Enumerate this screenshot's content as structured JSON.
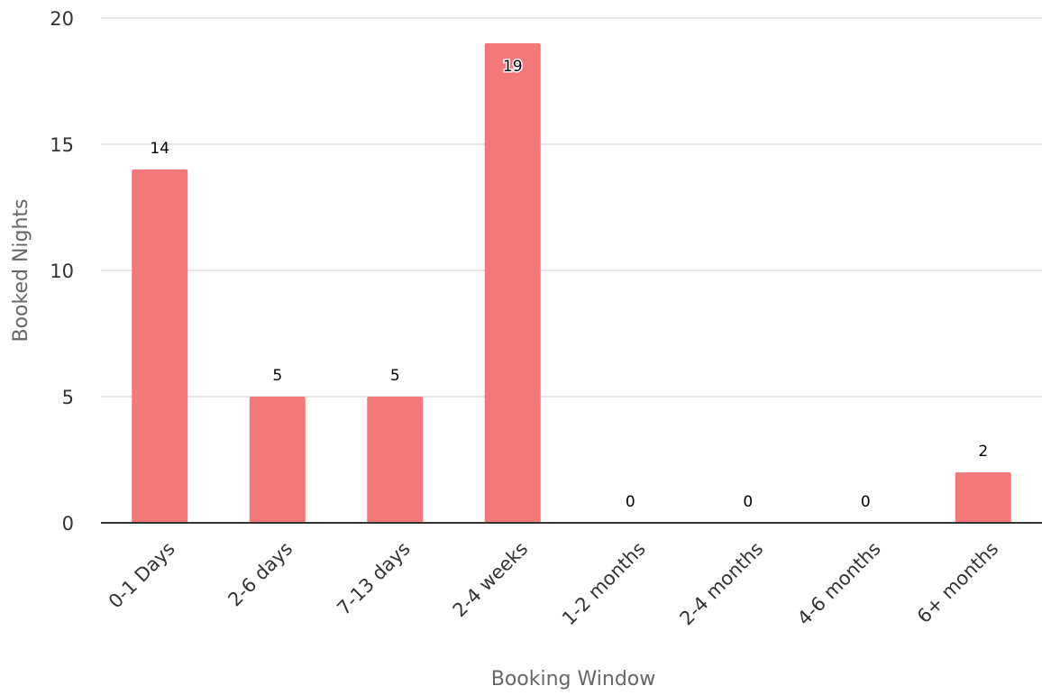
{
  "chart_data": {
    "type": "bar",
    "categories": [
      "0-1 Days",
      "2-6 days",
      "7-13 days",
      "2-4 weeks",
      "1-2 months",
      "2-4 months",
      "4-6 months",
      "6+ months"
    ],
    "values": [
      14,
      5,
      5,
      19,
      0,
      0,
      0,
      2
    ],
    "xlabel": "Booking Window",
    "ylabel": "Booked Nights",
    "ylim": [
      0,
      20
    ],
    "yticks": [
      0,
      5,
      10,
      15,
      20
    ],
    "grid": true,
    "legend": "none",
    "colors": {
      "bar": "#f47779",
      "grid": "#e6e6e6",
      "axis": "#333333"
    }
  }
}
